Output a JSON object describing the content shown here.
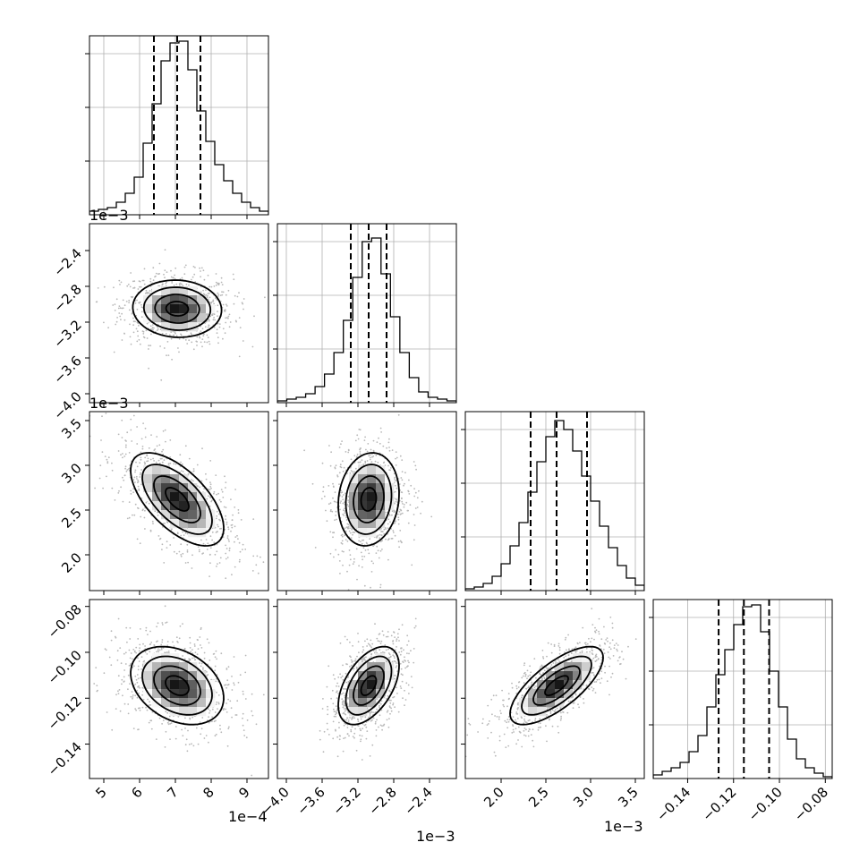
{
  "chart_data": {
    "type": "corner",
    "parameters": [
      {
        "range": [
          4.6,
          9.6
        ],
        "ticks": [
          5,
          6,
          7,
          8,
          9
        ],
        "tick_labels": [
          "5",
          "6",
          "7",
          "8",
          "9"
        ],
        "offset_label": "1e−4",
        "quantiles": [
          6.4,
          7.05,
          7.7
        ],
        "hist_counts": [
          2,
          3,
          4,
          7,
          12,
          21,
          40,
          62,
          86,
          96,
          97,
          81,
          58,
          41,
          28,
          19,
          12,
          7,
          4,
          2
        ],
        "hist_ylim": [
          0,
          100
        ]
      },
      {
        "range": [
          -4.1,
          -2.1
        ],
        "ticks": [
          -4.0,
          -3.6,
          -3.2,
          -2.8,
          -2.4
        ],
        "tick_labels": [
          "−4.0",
          "−3.6",
          "−3.2",
          "−2.8",
          "−2.4"
        ],
        "offset_label": "1e−3",
        "quantiles": [
          -3.28,
          -3.08,
          -2.88
        ],
        "hist_counts": [
          1,
          2,
          3,
          5,
          9,
          16,
          28,
          46,
          70,
          90,
          92,
          72,
          48,
          28,
          14,
          6,
          3,
          2,
          1
        ],
        "hist_ylim": [
          0,
          100
        ]
      },
      {
        "range": [
          1.6,
          3.6
        ],
        "ticks": [
          2.0,
          2.5,
          3.0,
          3.5
        ],
        "tick_labels": [
          "2.0",
          "2.5",
          "3.0",
          "3.5"
        ],
        "offset_label": "1e−3",
        "quantiles": [
          2.33,
          2.62,
          2.96
        ],
        "hist_counts": [
          1,
          2,
          4,
          8,
          15,
          25,
          38,
          55,
          72,
          86,
          95,
          90,
          78,
          64,
          50,
          36,
          24,
          14,
          7,
          3
        ],
        "hist_ylim": [
          0,
          100
        ]
      },
      {
        "range": [
          -0.155,
          -0.077
        ],
        "ticks": [
          -0.14,
          -0.12,
          -0.1,
          -0.08
        ],
        "tick_labels": [
          "−0.14",
          "−0.12",
          "−0.10",
          "−0.08"
        ],
        "offset_label": "",
        "quantiles": [
          -0.1265,
          -0.1155,
          -0.1045
        ],
        "hist_counts": [
          2,
          4,
          6,
          9,
          15,
          24,
          40,
          58,
          72,
          86,
          96,
          97,
          82,
          60,
          40,
          22,
          11,
          6,
          3,
          1
        ],
        "hist_ylim": [
          0,
          100
        ]
      }
    ],
    "y_tick_labels_left": [
      [
        "−2.4",
        "−2.8",
        "−3.2",
        "−3.6",
        "−4.0"
      ],
      [
        "3.5",
        "3.0",
        "2.5",
        "2.0"
      ],
      [
        "−0.08",
        "−0.10",
        "−0.12",
        "−0.14"
      ]
    ],
    "pairs": [
      {
        "x": 0,
        "y": 1,
        "mean": [
          7.05,
          -3.05
        ],
        "sd": [
          0.62,
          0.16
        ],
        "rho": -0.05
      },
      {
        "x": 0,
        "y": 2,
        "mean": [
          7.05,
          2.62
        ],
        "sd": [
          0.65,
          0.26
        ],
        "rho": -0.62
      },
      {
        "x": 1,
        "y": 2,
        "mean": [
          -3.08,
          2.62
        ],
        "sd": [
          0.17,
          0.26
        ],
        "rho": 0.12
      },
      {
        "x": 0,
        "y": 3,
        "mean": [
          7.05,
          -0.1145
        ],
        "sd": [
          0.65,
          0.0085
        ],
        "rho": -0.32
      },
      {
        "x": 1,
        "y": 3,
        "mean": [
          -3.08,
          -0.1145
        ],
        "sd": [
          0.17,
          0.0085
        ],
        "rho": 0.5
      },
      {
        "x": 2,
        "y": 3,
        "mean": [
          2.62,
          -0.1145
        ],
        "sd": [
          0.26,
          0.0085
        ],
        "rho": 0.72
      }
    ],
    "grid": true
  }
}
